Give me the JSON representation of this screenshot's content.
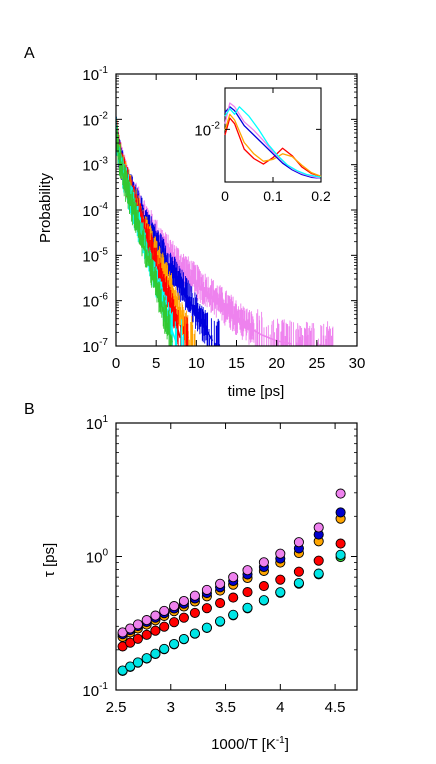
{
  "panels": {
    "a_label": "A",
    "b_label": "B"
  },
  "chart_data": [
    {
      "name": "panel-a",
      "type": "line",
      "xlabel": "time [ps]",
      "ylabel": "Probability",
      "xlim": [
        0,
        30
      ],
      "ylim": [
        1e-07,
        0.1
      ],
      "yscale": "log",
      "xticks": [
        "0",
        "5",
        "10",
        "15",
        "20",
        "25",
        "30"
      ],
      "ytick_exponents": [
        "-7",
        "-6",
        "-5",
        "-4",
        "-3",
        "-2",
        "-1"
      ],
      "tick_base": "10",
      "series": [
        {
          "color": "#32c832",
          "values_x": [
            0,
            0.3,
            1,
            2,
            3,
            4,
            5,
            6,
            7
          ],
          "values_y": [
            0.006,
            0.0018,
            0.00045,
            0.00012,
            3e-05,
            8e-06,
            2e-06,
            5e-07,
            1.2e-07
          ],
          "end_x": 7
        },
        {
          "color": "#00ffff",
          "values_x": [
            0,
            0.3,
            1,
            2,
            3,
            4,
            5,
            6,
            7.5
          ],
          "values_y": [
            0.006,
            0.0019,
            0.0005,
            0.00014,
            3.5e-05,
            1e-05,
            2.5e-06,
            7e-07,
            1.2e-07
          ],
          "end_x": 8.5
        },
        {
          "color": "#ff0000",
          "values_x": [
            0,
            0.3,
            1,
            2,
            3,
            4,
            5,
            6,
            7,
            8
          ],
          "values_y": [
            0.006,
            0.002,
            0.0006,
            0.00018,
            6e-05,
            2e-05,
            6e-06,
            2e-06,
            6e-07,
            1.5e-07
          ],
          "end_x": 9
        },
        {
          "color": "#ffa500",
          "values_x": [
            0,
            0.3,
            1,
            2,
            3,
            4,
            5,
            6,
            7,
            8,
            9
          ],
          "values_y": [
            0.006,
            0.002,
            0.0006,
            0.0002,
            7e-05,
            2.5e-05,
            1e-05,
            4e-06,
            1.5e-06,
            5e-07,
            1.5e-07
          ],
          "end_x": 10
        },
        {
          "color": "#0000dd",
          "values_x": [
            0,
            0.3,
            1,
            2,
            3,
            4,
            5,
            6,
            7,
            8,
            9,
            10,
            11,
            12
          ],
          "values_y": [
            0.006,
            0.002,
            0.00065,
            0.00022,
            9e-05,
            4e-05,
            1.8e-05,
            9e-06,
            4.5e-06,
            2.2e-06,
            1.1e-06,
            5.5e-07,
            2.7e-07,
            1.3e-07
          ],
          "end_x": 13
        },
        {
          "color": "#ee82ee",
          "values_x": [
            0,
            0.3,
            1,
            2,
            3,
            4,
            5,
            6,
            8,
            10,
            12,
            14,
            16,
            18,
            20,
            22
          ],
          "values_y": [
            0.006,
            0.002,
            0.0007,
            0.00025,
            0.00011,
            5e-05,
            2.6e-05,
            1.4e-05,
            5.5e-06,
            2.5e-06,
            1.2e-06,
            6e-07,
            3e-07,
            1.8e-07,
            1.3e-07,
            1.1e-07
          ],
          "end_x": 27
        }
      ],
      "inset": {
        "xlim": [
          0,
          0.2
        ],
        "xticks": [
          "0",
          "0.1",
          "0.2"
        ],
        "ytick_exponent": "-2",
        "tick_base": "10",
        "series": [
          {
            "color": "#ff0000",
            "values_x": [
              0,
              0.01,
              0.02,
              0.04,
              0.06,
              0.08,
              0.1,
              0.12,
              0.14,
              0.16,
              0.18,
              0.2
            ],
            "values_y": [
              0.5,
              0.68,
              0.62,
              0.35,
              0.25,
              0.19,
              0.26,
              0.36,
              0.28,
              0.16,
              0.09,
              0.06
            ]
          },
          {
            "color": "#ffa500",
            "values_x": [
              0,
              0.01,
              0.02,
              0.04,
              0.06,
              0.08,
              0.1,
              0.12,
              0.14,
              0.16,
              0.18,
              0.2
            ],
            "values_y": [
              0.55,
              0.72,
              0.66,
              0.42,
              0.3,
              0.22,
              0.24,
              0.3,
              0.27,
              0.18,
              0.1,
              0.06
            ]
          },
          {
            "color": "#0000dd",
            "values_x": [
              0,
              0.01,
              0.02,
              0.04,
              0.06,
              0.08,
              0.1,
              0.12,
              0.14,
              0.16,
              0.18,
              0.2
            ],
            "values_y": [
              0.74,
              0.8,
              0.76,
              0.6,
              0.5,
              0.4,
              0.3,
              0.2,
              0.13,
              0.08,
              0.05,
              0.04
            ]
          },
          {
            "color": "#ee82ee",
            "values_x": [
              0,
              0.01,
              0.02,
              0.04,
              0.06,
              0.08,
              0.1,
              0.12,
              0.14,
              0.16,
              0.18,
              0.2
            ],
            "values_y": [
              0.62,
              0.84,
              0.8,
              0.64,
              0.55,
              0.44,
              0.32,
              0.22,
              0.14,
              0.09,
              0.06,
              0.04
            ]
          },
          {
            "color": "#00ffff",
            "values_x": [
              0,
              0.01,
              0.02,
              0.03,
              0.05,
              0.07,
              0.09,
              0.11,
              0.13,
              0.15,
              0.17,
              0.2
            ],
            "values_y": [
              0.7,
              0.78,
              0.72,
              0.8,
              0.7,
              0.56,
              0.4,
              0.28,
              0.18,
              0.12,
              0.08,
              0.05
            ]
          }
        ]
      }
    },
    {
      "name": "panel-b",
      "type": "scatter",
      "xlabel": "1000/T [K",
      "xlabel_sup": "-1",
      "xlabel_end": "]",
      "ylabel": "τ [ps]",
      "xlim": [
        2.5,
        4.7
      ],
      "ylim": [
        0.1,
        10
      ],
      "yscale": "log",
      "xticks": [
        "2.5",
        "3",
        "3.5",
        "4",
        "4.5"
      ],
      "ytick_exponents": [
        "-1",
        "0",
        "1"
      ],
      "tick_base": "10",
      "x": [
        2.56,
        2.63,
        2.7,
        2.78,
        2.86,
        2.94,
        3.03,
        3.12,
        3.22,
        3.33,
        3.45,
        3.57,
        3.7,
        3.85,
        4.0,
        4.17,
        4.35,
        4.55
      ],
      "series": [
        {
          "color": "#32c832",
          "values": [
            0.139,
            0.149,
            0.16,
            0.172,
            0.186,
            0.202,
            0.22,
            0.24,
            0.264,
            0.292,
            0.325,
            0.363,
            0.409,
            0.467,
            0.535,
            0.626,
            0.736,
            0.99
          ]
        },
        {
          "color": "#00e5e5",
          "values": [
            0.14,
            0.15,
            0.161,
            0.173,
            0.187,
            0.203,
            0.221,
            0.241,
            0.265,
            0.293,
            0.327,
            0.366,
            0.413,
            0.471,
            0.54,
            0.633,
            0.745,
            1.03
          ]
        },
        {
          "color": "#ff0000",
          "values": [
            0.212,
            0.226,
            0.242,
            0.259,
            0.278,
            0.298,
            0.322,
            0.348,
            0.378,
            0.41,
            0.448,
            0.492,
            0.541,
            0.6,
            0.67,
            0.77,
            0.93,
            1.25
          ]
        },
        {
          "color": "#ffa500",
          "values": [
            0.25,
            0.27,
            0.289,
            0.309,
            0.333,
            0.359,
            0.389,
            0.422,
            0.46,
            0.503,
            0.555,
            0.615,
            0.69,
            0.78,
            0.9,
            1.06,
            1.3,
            1.92
          ]
        },
        {
          "color": "#0000cc",
          "values": [
            0.262,
            0.281,
            0.301,
            0.323,
            0.348,
            0.376,
            0.408,
            0.443,
            0.485,
            0.532,
            0.588,
            0.655,
            0.735,
            0.835,
            0.965,
            1.15,
            1.46,
            2.14
          ]
        },
        {
          "color": "#ee82ee",
          "values": [
            0.27,
            0.289,
            0.31,
            0.334,
            0.361,
            0.391,
            0.425,
            0.464,
            0.509,
            0.562,
            0.625,
            0.7,
            0.79,
            0.905,
            1.05,
            1.28,
            1.65,
            2.96
          ]
        }
      ]
    }
  ]
}
